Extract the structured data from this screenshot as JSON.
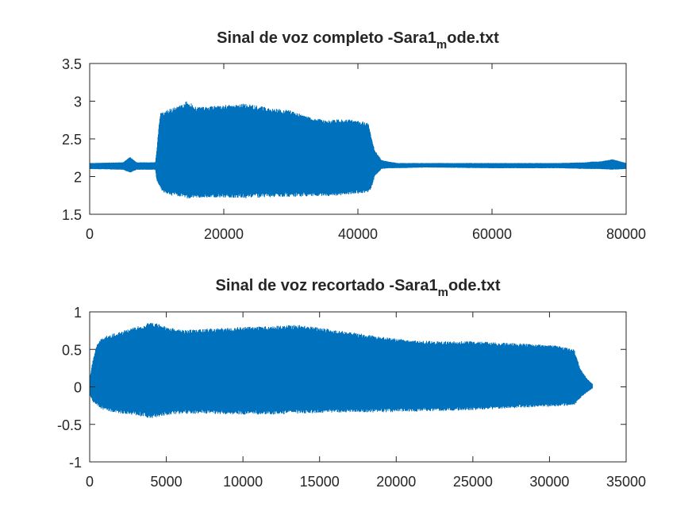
{
  "chart_data": [
    {
      "type": "line",
      "title": {
        "main": "Sinal de voz completo -Sara1",
        "sub": "m",
        "tail": "ode.txt"
      },
      "xlabel": "",
      "ylabel": "",
      "xlim": [
        0,
        80000
      ],
      "ylim": [
        1.5,
        3.5
      ],
      "xticks": [
        "0",
        "20000",
        "40000",
        "60000",
        "80000"
      ],
      "xtick_values": [
        0,
        20000,
        40000,
        60000,
        80000
      ],
      "yticks": [
        "1.5",
        "2",
        "2.5",
        "3",
        "3.5"
      ],
      "ytick_values": [
        1.5,
        2,
        2.5,
        3,
        3.5
      ],
      "grid": false,
      "color": "#0072bd",
      "series": [
        {
          "baseline": 2.14,
          "envelope": {
            "x": [
              0,
              5000,
              6000,
              7000,
              9800,
              10000,
              10500,
              11000,
              12000,
              14000,
              14500,
              16000,
              18000,
              20000,
              22000,
              23000,
              25000,
              28000,
              30000,
              33000,
              36000,
              38000,
              40000,
              41500,
              42000,
              42500,
              43500,
              44500,
              46000,
              50000,
              60000,
              70000,
              74000,
              75000,
              76000,
              78000,
              80000
            ],
            "upper": [
              2.18,
              2.19,
              2.26,
              2.19,
              2.19,
              2.35,
              2.84,
              2.86,
              2.9,
              2.96,
              3.01,
              2.92,
              2.93,
              2.95,
              2.95,
              2.97,
              2.94,
              2.9,
              2.88,
              2.78,
              2.75,
              2.77,
              2.74,
              2.72,
              2.52,
              2.35,
              2.22,
              2.2,
              2.18,
              2.18,
              2.18,
              2.18,
              2.19,
              2.2,
              2.2,
              2.23,
              2.18
            ],
            "lower": [
              2.1,
              2.09,
              2.05,
              2.09,
              2.09,
              1.95,
              1.86,
              1.78,
              1.75,
              1.73,
              1.71,
              1.72,
              1.72,
              1.72,
              1.72,
              1.71,
              1.72,
              1.73,
              1.73,
              1.74,
              1.74,
              1.75,
              1.77,
              1.79,
              1.84,
              2.0,
              2.1,
              2.11,
              2.11,
              2.12,
              2.11,
              2.11,
              2.1,
              2.1,
              2.1,
              2.09,
              2.1
            ]
          }
        }
      ]
    },
    {
      "type": "line",
      "title": {
        "main": "Sinal de voz recortado -Sara1",
        "sub": "m",
        "tail": "ode.txt"
      },
      "xlabel": "",
      "ylabel": "",
      "xlim": [
        0,
        35000
      ],
      "ylim": [
        -1,
        1
      ],
      "xticks": [
        "0",
        "5000",
        "10000",
        "15000",
        "20000",
        "25000",
        "30000",
        "35000"
      ],
      "xtick_values": [
        0,
        5000,
        10000,
        15000,
        20000,
        25000,
        30000,
        35000
      ],
      "yticks": [
        "-1",
        "-0.5",
        "0",
        "0.5",
        "1"
      ],
      "ytick_values": [
        -1,
        -0.5,
        0,
        0.5,
        1
      ],
      "grid": false,
      "color": "#0072bd",
      "series": [
        {
          "baseline": 0,
          "envelope": {
            "x": [
              0,
              200,
              500,
              1000,
              2000,
              3000,
              4000,
              4500,
              5000,
              6000,
              8000,
              10000,
              12000,
              13500,
              15000,
              17000,
              19000,
              21000,
              23000,
              25000,
              27000,
              29000,
              30500,
              31600,
              32000,
              32400,
              32800
            ],
            "upper": [
              0.1,
              0.35,
              0.6,
              0.68,
              0.74,
              0.8,
              0.86,
              0.85,
              0.8,
              0.76,
              0.78,
              0.8,
              0.81,
              0.83,
              0.79,
              0.73,
              0.67,
              0.62,
              0.61,
              0.61,
              0.59,
              0.57,
              0.55,
              0.5,
              0.25,
              0.12,
              0.04
            ],
            "lower": [
              -0.1,
              -0.2,
              -0.26,
              -0.32,
              -0.36,
              -0.38,
              -0.42,
              -0.4,
              -0.38,
              -0.36,
              -0.36,
              -0.37,
              -0.37,
              -0.36,
              -0.35,
              -0.34,
              -0.34,
              -0.33,
              -0.32,
              -0.31,
              -0.29,
              -0.27,
              -0.26,
              -0.25,
              -0.15,
              -0.08,
              -0.02
            ]
          }
        }
      ]
    }
  ]
}
